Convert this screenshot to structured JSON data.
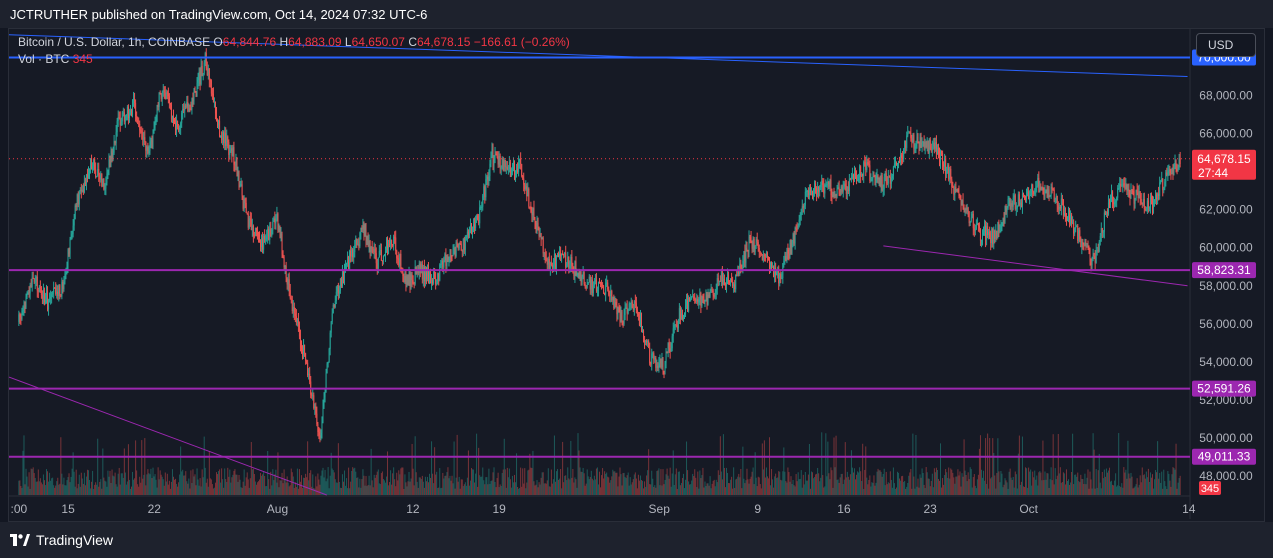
{
  "header": {
    "publisher": "JCTRUTHER published on TradingView.com, Oct 14, 2024 07:32 UTC-6"
  },
  "legend": {
    "symbol": "Bitcoin / U.S. Dollar, 1h, COINBASE",
    "o_label": "O",
    "o_value": "64,844.76",
    "h_label": "H",
    "h_value": "64,883.09",
    "l_label": "L",
    "l_value": "64,650.07",
    "c_label": "C",
    "c_value": "64,678.15",
    "change": "−166.61 (−0.26%)",
    "vol_label": "Vol · BTC",
    "vol_value": "345"
  },
  "currency_selector": "USD",
  "footer": {
    "brand": "TradingView"
  },
  "colors": {
    "background": "#161a25",
    "up": "#26a69a",
    "down": "#ef5350",
    "blue_line": "#2962ff",
    "purple_line": "#9c27b0",
    "price_tag": "#f23645"
  },
  "chart_data": {
    "type": "candlestick",
    "title": "Bitcoin / U.S. Dollar, 1h, COINBASE",
    "ylim": [
      47000,
      71500
    ],
    "y_ticks": [
      48000,
      50000,
      52000,
      54000,
      56000,
      58000,
      60000,
      62000,
      64000,
      66000,
      68000
    ],
    "y_tick_labels": [
      "48,000.00",
      "50,000.00",
      "52,000.00",
      "54,000.00",
      "56,000.00",
      "58,000.00",
      "60,000.00",
      "62,000.00",
      "64,000.00",
      "66,000.00",
      "68,000.00"
    ],
    "x_ticks": [
      {
        "label": ":00",
        "day": 0
      },
      {
        "label": "15",
        "day": 4
      },
      {
        "label": "22",
        "day": 11
      },
      {
        "label": "Aug",
        "day": 21
      },
      {
        "label": "12",
        "day": 32
      },
      {
        "label": "19",
        "day": 39
      },
      {
        "label": "Sep",
        "day": 52
      },
      {
        "label": "9",
        "day": 60
      },
      {
        "label": "16",
        "day": 67
      },
      {
        "label": "23",
        "day": 74
      },
      {
        "label": "Oct",
        "day": 82
      },
      {
        "label": "14",
        "day": 95
      }
    ],
    "x_range_days": [
      -0.8,
      95.1
    ],
    "close_path": [
      [
        0,
        56100
      ],
      [
        1,
        58300
      ],
      [
        2,
        57200
      ],
      [
        3,
        57900
      ],
      [
        4,
        62200
      ],
      [
        5,
        64500
      ],
      [
        6,
        63400
      ],
      [
        7,
        66800
      ],
      [
        8,
        67400
      ],
      [
        9,
        64800
      ],
      [
        10,
        68500
      ],
      [
        11,
        66300
      ],
      [
        12,
        67600
      ],
      [
        13,
        69800
      ],
      [
        14,
        66200
      ],
      [
        15,
        64800
      ],
      [
        16,
        61200
      ],
      [
        17,
        60300
      ],
      [
        18,
        61500
      ],
      [
        19,
        57300
      ],
      [
        20,
        54000
      ],
      [
        21,
        50100
      ],
      [
        22,
        57200
      ],
      [
        23,
        59300
      ],
      [
        24,
        61000
      ],
      [
        25,
        59200
      ],
      [
        26,
        60600
      ],
      [
        27,
        58200
      ],
      [
        28,
        58800
      ],
      [
        29,
        58300
      ],
      [
        30,
        59700
      ],
      [
        31,
        60200
      ],
      [
        32,
        61400
      ],
      [
        33,
        64800
      ],
      [
        34,
        64100
      ],
      [
        35,
        64300
      ],
      [
        36,
        61300
      ],
      [
        37,
        59100
      ],
      [
        38,
        59500
      ],
      [
        39,
        58700
      ],
      [
        40,
        57900
      ],
      [
        41,
        57800
      ],
      [
        42,
        56300
      ],
      [
        43,
        57200
      ],
      [
        44,
        54300
      ],
      [
        45,
        53900
      ],
      [
        46,
        56300
      ],
      [
        47,
        57500
      ],
      [
        48,
        57200
      ],
      [
        49,
        58400
      ],
      [
        50,
        58200
      ],
      [
        51,
        60300
      ],
      [
        52,
        59700
      ],
      [
        53,
        58400
      ],
      [
        54,
        60300
      ],
      [
        55,
        62900
      ],
      [
        56,
        63300
      ],
      [
        57,
        63000
      ],
      [
        58,
        63400
      ],
      [
        59,
        64300
      ],
      [
        60,
        63300
      ],
      [
        61,
        63900
      ],
      [
        62,
        65800
      ],
      [
        63,
        65300
      ],
      [
        64,
        65200
      ],
      [
        65,
        63600
      ],
      [
        66,
        61900
      ],
      [
        67,
        60800
      ],
      [
        68,
        60600
      ],
      [
        69,
        62200
      ],
      [
        70,
        62600
      ],
      [
        71,
        63400
      ],
      [
        72,
        62800
      ],
      [
        73,
        61900
      ],
      [
        74,
        60500
      ],
      [
        75,
        59200
      ],
      [
        76,
        62400
      ],
      [
        77,
        63300
      ],
      [
        78,
        62600
      ],
      [
        79,
        62300
      ],
      [
        80,
        63700
      ],
      [
        81,
        64678
      ]
    ],
    "annotations": {
      "horizontal_lines": [
        {
          "value": 70000.0,
          "label": "70,000.00",
          "color": "#2962ff"
        },
        {
          "value": 58823.31,
          "label": "58,823.31",
          "color": "#9c27b0"
        },
        {
          "value": 52591.26,
          "label": "52,591.26",
          "color": "#9c27b0"
        },
        {
          "value": 49011.33,
          "label": "49,011.33",
          "color": "#9c27b0"
        }
      ],
      "trend_lines": [
        {
          "from": [
            -0.8,
            71200
          ],
          "to": [
            94.9,
            69000
          ],
          "color": "#2962ff"
        },
        {
          "from": [
            -0.8,
            53200
          ],
          "to": [
            25.0,
            47000
          ],
          "color": "#9c27b0"
        },
        {
          "from": [
            70.2,
            60100
          ],
          "to": [
            94.9,
            58000
          ],
          "color": "#9c27b0"
        }
      ],
      "last_price": {
        "value": 64678.15,
        "label": "64,678.15",
        "countdown": "27:44"
      },
      "volume_tag": "345"
    }
  }
}
